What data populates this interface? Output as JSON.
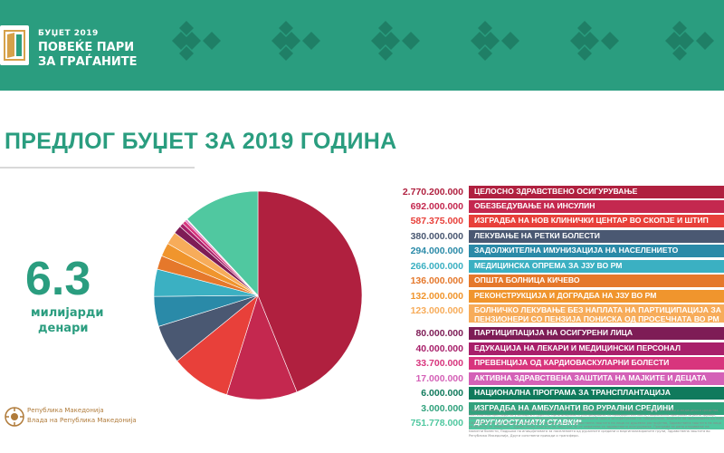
{
  "header": {
    "year_label": "БУЏЕТ 2019",
    "tagline_line1": "ПОВЕЌЕ ПАРИ",
    "tagline_line2": "ЗА ГРАЃАНИТЕ"
  },
  "main_title": "ПРЕДЛОГ БУЏЕТ ЗА 2019 ГОДИНА",
  "total": {
    "value": "6.3",
    "unit_line1": "милијарди",
    "unit_line2": "денари"
  },
  "chart_data": {
    "type": "pie",
    "categories": [
      "ЦЕЛОСНО ЗДРАВСТВЕНО ОСИГУРУВАЊЕ",
      "ОБЕЗБЕДУВАЊЕ НА ИНСУЛИН",
      "ИЗГРАДБА НА НОВ КЛИНИЧКИ ЦЕНТАР ВО СКОПЈЕ И ШТИП",
      "ЛЕКУВАЊЕ НА РЕТКИ БОЛЕСТИ",
      "ЗАДОЛЖИТЕЛНА ИМУНИЗАЦИЈА НА НАСЕЛЕНИЕТО",
      "МЕДИЦИНСКА ОПРЕМА ЗА ЈЗУ ВО РМ",
      "ОПШТА БОЛНИЦА КИЧЕВО",
      "РЕКОНСТРУКЦИЈА И ДОГРАДБА НА ЈЗУ ВО РМ",
      "БОЛНИЧКО ЛЕКУВАЊЕ БЕЗ НАПЛАТА НА ПАРТИЦИПАЦИЈА ЗА ПЕНЗИОНЕРИ СО ПЕНЗИЈА ПОНИСКА ОД ПРОСЕЧНАТА ВО РМ",
      "ПАРТИЦИПАЦИЈА НА ОСИГУРЕНИ ЛИЦА",
      "ЕДУКАЦИЈА НА ЛЕКАРИ И МЕДИЦИНСКИ ПЕРСОНАЛ",
      "ПРЕВЕНЦИЈА ОД КАРДИОВАСКУЛАРНИ БОЛЕСТИ",
      "АКТИВНА ЗДРАВСТВЕНА ЗАШТИТА НА МАЈКИТЕ И ДЕЦАТА",
      "НАЦИОНАЛНА ПРОГРАМА ЗА ТРАНСПЛАНТАЦИЈА",
      "ИЗГРАДБА НА АМБУЛАНТИ ВО РУРАЛНИ СРЕДИНИ",
      "ДРУГИ/ОСТАНАТИ СТАВКИ*"
    ],
    "values": [
      2770200000,
      692000000,
      587375000,
      380000000,
      294000000,
      266000000,
      136000000,
      132000000,
      123000000,
      80000000,
      40000000,
      33700000,
      17000000,
      6000000,
      3000000,
      751778000
    ],
    "value_labels": [
      "2.770.200.000",
      "692.000.000",
      "587.375.000",
      "380.000.000",
      "294.000.000",
      "266.000.000",
      "136.000.000",
      "132.000.000",
      "123.000.000",
      "80.000.000",
      "40.000.000",
      "33.700.000",
      "17.000.000",
      "6.000.000",
      "3.000.000",
      "751.778.000"
    ],
    "colors": [
      "#b0203f",
      "#c4284f",
      "#e8403a",
      "#4a5872",
      "#2a8aa8",
      "#3bb0c2",
      "#e5782b",
      "#f0952d",
      "#f7ac5a",
      "#7e1c56",
      "#a81f6a",
      "#d8357d",
      "#d461b7",
      "#107a5c",
      "#31a27d",
      "#50c8a0"
    ],
    "legend_placement": "right"
  },
  "footnote": "* Администрација, Управа за електронско здравство, Центар за традиционална кинеска медицина, Агенција за лекови и медицински средства, Систематски прегледи на ученици и студенти, Организирање и унапредување на крводарителството, Национална програма за јавно здравје, Испитување на правата и решенијата на второстепено ниво, Превентивни мерки за спречување на туберкулоза, Заштита на населението од ХИВ/СИДА, Заштита од капливите заболувања, Здравје за сите, Здравствена заштита на лица со душевни растројства, Здравствена заштита на лица со болести на зависност, Здравствена заштита на лица кои не се опфатени со здравствено осигурување, Програма за рано откривање на малигни болести, Подршка на иницијативата за населението од руралните средини и маргинализираните групи, Здравствена заштита во Република Македонија, Други сопствени приходи и трансфери.",
  "government": {
    "line1": "Република Македонија",
    "line2": "Влада на Република Македонија"
  }
}
